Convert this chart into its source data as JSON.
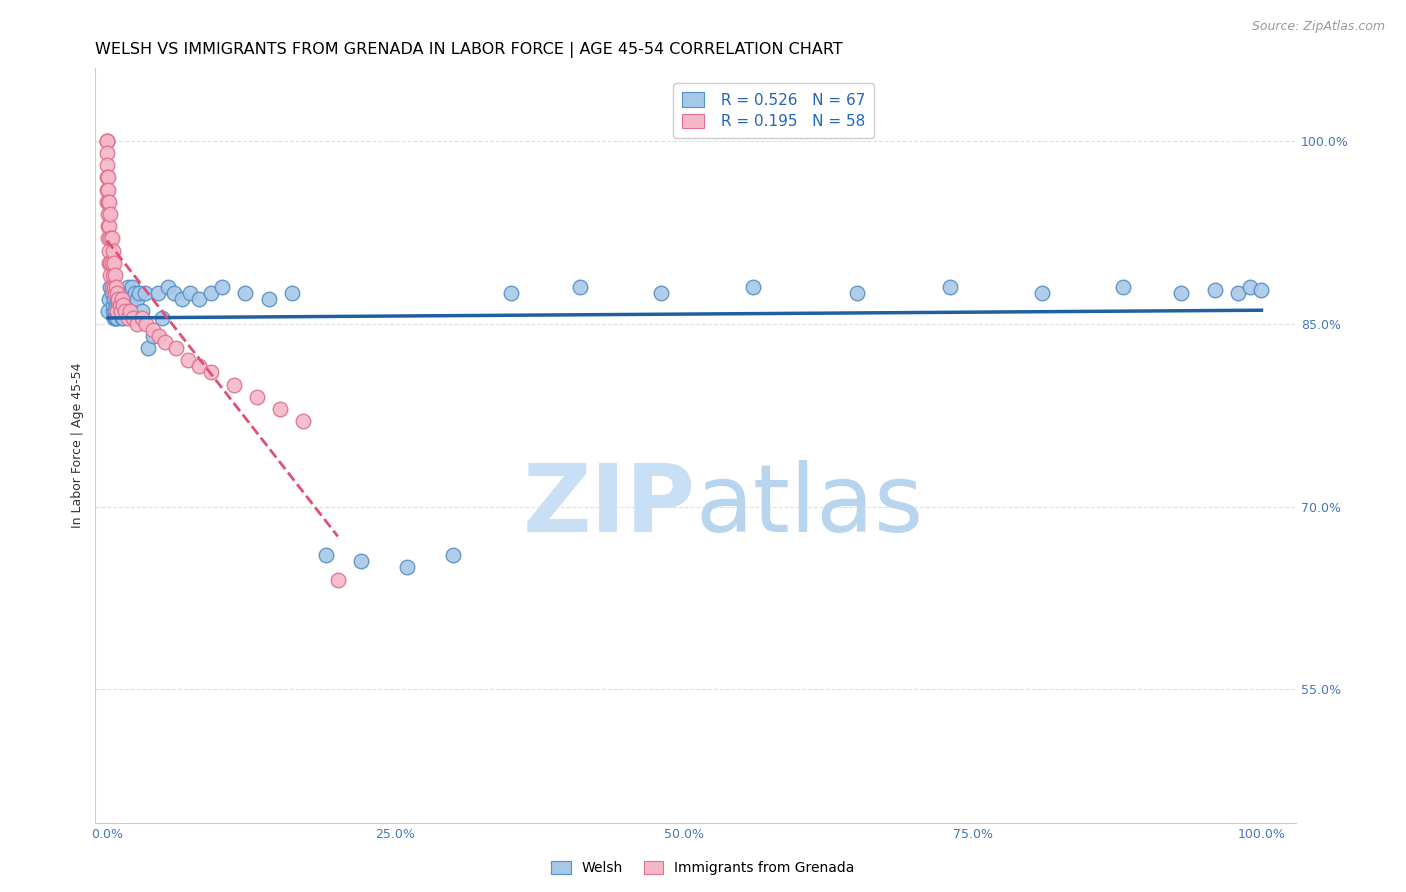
{
  "title": "WELSH VS IMMIGRANTS FROM GRENADA IN LABOR FORCE | AGE 45-54 CORRELATION CHART",
  "source": "Source: ZipAtlas.com",
  "ylabel": "In Labor Force | Age 45-54",
  "y_tick_labels": [
    "55.0%",
    "70.0%",
    "85.0%",
    "100.0%"
  ],
  "y_tick_values": [
    0.55,
    0.7,
    0.85,
    1.0
  ],
  "x_tick_labels": [
    "0.0%",
    "25.0%",
    "50.0%",
    "75.0%",
    "100.0%"
  ],
  "x_tick_values": [
    0.0,
    0.25,
    0.5,
    0.75,
    1.0
  ],
  "xlim": [
    -0.01,
    1.03
  ],
  "ylim": [
    0.44,
    1.06
  ],
  "welsh_R": 0.526,
  "welsh_N": 67,
  "grenada_R": 0.195,
  "grenada_N": 58,
  "welsh_color": "#a8c8e8",
  "welsh_edge_color": "#5590c8",
  "welsh_line_color": "#2060a0",
  "grenada_color": "#f5b8c8",
  "grenada_edge_color": "#e07090",
  "grenada_line_color": "#e05075",
  "legend_label_welsh": "Welsh",
  "legend_label_grenada": "Immigrants from Grenada",
  "watermark_zip": "ZIP",
  "watermark_atlas": "atlas",
  "watermark_color": "#c8dff5",
  "title_fontsize": 11.5,
  "source_fontsize": 9,
  "axis_label_fontsize": 9,
  "tick_fontsize": 9,
  "legend_fontsize": 11,
  "welsh_x": [
    0.001,
    0.002,
    0.003,
    0.004,
    0.005,
    0.005,
    0.006,
    0.006,
    0.007,
    0.007,
    0.008,
    0.008,
    0.009,
    0.009,
    0.01,
    0.01,
    0.011,
    0.011,
    0.012,
    0.012,
    0.013,
    0.013,
    0.014,
    0.014,
    0.015,
    0.016,
    0.017,
    0.018,
    0.019,
    0.02,
    0.022,
    0.024,
    0.026,
    0.028,
    0.03,
    0.033,
    0.036,
    0.04,
    0.044,
    0.048,
    0.053,
    0.058,
    0.065,
    0.072,
    0.08,
    0.09,
    0.1,
    0.12,
    0.14,
    0.16,
    0.19,
    0.22,
    0.26,
    0.3,
    0.35,
    0.41,
    0.48,
    0.56,
    0.65,
    0.73,
    0.81,
    0.88,
    0.93,
    0.96,
    0.98,
    0.99,
    1.0
  ],
  "welsh_y": [
    0.86,
    0.87,
    0.88,
    0.875,
    0.86,
    0.865,
    0.855,
    0.87,
    0.86,
    0.855,
    0.855,
    0.865,
    0.87,
    0.855,
    0.865,
    0.87,
    0.86,
    0.87,
    0.86,
    0.865,
    0.855,
    0.86,
    0.855,
    0.86,
    0.87,
    0.865,
    0.86,
    0.88,
    0.875,
    0.865,
    0.88,
    0.875,
    0.87,
    0.875,
    0.86,
    0.875,
    0.83,
    0.84,
    0.875,
    0.855,
    0.88,
    0.875,
    0.87,
    0.875,
    0.87,
    0.875,
    0.88,
    0.875,
    0.87,
    0.875,
    0.66,
    0.655,
    0.65,
    0.66,
    0.875,
    0.88,
    0.875,
    0.88,
    0.875,
    0.88,
    0.875,
    0.88,
    0.875,
    0.878,
    0.875,
    0.88,
    0.878
  ],
  "grenada_x": [
    0.0,
    0.0,
    0.0,
    0.0,
    0.0,
    0.0,
    0.0,
    0.0,
    0.001,
    0.001,
    0.001,
    0.001,
    0.001,
    0.001,
    0.002,
    0.002,
    0.002,
    0.002,
    0.003,
    0.003,
    0.003,
    0.003,
    0.004,
    0.004,
    0.004,
    0.005,
    0.005,
    0.006,
    0.006,
    0.007,
    0.007,
    0.008,
    0.009,
    0.009,
    0.01,
    0.011,
    0.012,
    0.013,
    0.014,
    0.016,
    0.018,
    0.02,
    0.023,
    0.026,
    0.03,
    0.034,
    0.04,
    0.045,
    0.05,
    0.06,
    0.07,
    0.08,
    0.09,
    0.11,
    0.13,
    0.15,
    0.17,
    0.2
  ],
  "grenada_y": [
    1.0,
    1.0,
    1.0,
    0.99,
    0.98,
    0.97,
    0.96,
    0.95,
    0.97,
    0.96,
    0.95,
    0.94,
    0.93,
    0.92,
    0.95,
    0.93,
    0.91,
    0.9,
    0.94,
    0.92,
    0.9,
    0.89,
    0.92,
    0.9,
    0.88,
    0.91,
    0.89,
    0.9,
    0.88,
    0.89,
    0.875,
    0.88,
    0.875,
    0.86,
    0.87,
    0.865,
    0.86,
    0.87,
    0.865,
    0.86,
    0.855,
    0.86,
    0.855,
    0.85,
    0.855,
    0.85,
    0.845,
    0.84,
    0.835,
    0.83,
    0.82,
    0.815,
    0.81,
    0.8,
    0.79,
    0.78,
    0.77,
    0.64
  ]
}
